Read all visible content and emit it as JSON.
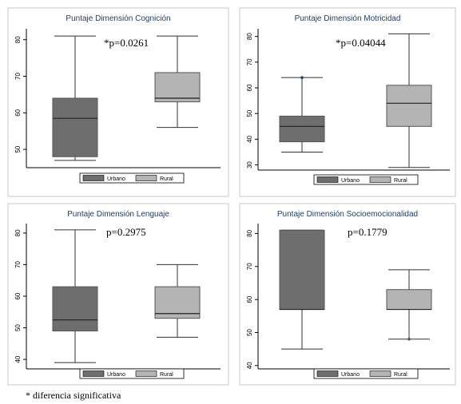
{
  "footnote": "* diferencia significativa",
  "colors": {
    "urbano": "#6e6e6e",
    "rural": "#b4b4b4",
    "title": "#1c3e6e",
    "frame": "#c8c8c8"
  },
  "chart_data": [
    {
      "type": "boxplot",
      "title": "Puntaje Dimensión Cognición",
      "annotation": "*p=0.0261",
      "yticks": [
        50,
        60,
        70,
        80
      ],
      "ylim": [
        45,
        83
      ],
      "legend": [
        "Urbano",
        "Rural"
      ],
      "series": [
        {
          "name": "Urbano",
          "min": 47,
          "q1": 48,
          "median": 58.5,
          "q3": 64,
          "max": 81,
          "outliers": []
        },
        {
          "name": "Rural",
          "min": 56,
          "q1": 63,
          "median": 64,
          "q3": 71,
          "max": 81,
          "outliers": []
        }
      ]
    },
    {
      "type": "boxplot",
      "title": "Puntaje Dimensión Motricidad",
      "annotation": "*p=0.04044",
      "yticks": [
        30,
        40,
        50,
        60,
        70,
        80
      ],
      "ylim": [
        28,
        83
      ],
      "legend": [
        "Urbano",
        "Rural"
      ],
      "series": [
        {
          "name": "Urbano",
          "min": 35,
          "q1": 39,
          "median": 45,
          "q3": 49,
          "max": 64,
          "outliers": [
            64
          ]
        },
        {
          "name": "Rural",
          "min": 29,
          "q1": 45,
          "median": 54,
          "q3": 61,
          "max": 81,
          "outliers": []
        }
      ]
    },
    {
      "type": "boxplot",
      "title": "Puntaje Dimensión Lenguaje",
      "annotation": "p=0.2975",
      "yticks": [
        40,
        50,
        60,
        70,
        80
      ],
      "ylim": [
        37,
        83
      ],
      "legend": [
        "Urbano",
        "Rural"
      ],
      "series": [
        {
          "name": "Urbano",
          "min": 39,
          "q1": 49,
          "median": 52.5,
          "q3": 63,
          "max": 81,
          "outliers": []
        },
        {
          "name": "Rural",
          "min": 47,
          "q1": 53,
          "median": 54.5,
          "q3": 63,
          "max": 70,
          "outliers": []
        }
      ]
    },
    {
      "type": "boxplot",
      "title": "Puntaje Dimensión Socioemocionalidad",
      "annotation": "p=0.1779",
      "yticks": [
        40,
        50,
        60,
        70,
        80
      ],
      "ylim": [
        39,
        83
      ],
      "legend": [
        "Urbano",
        "Rural"
      ],
      "series": [
        {
          "name": "Urbano",
          "min": 45,
          "q1": 57,
          "median": 57,
          "q3": 81,
          "max": 81,
          "outliers": []
        },
        {
          "name": "Rural",
          "min": 48,
          "q1": 57,
          "median": 57,
          "q3": 63,
          "max": 69,
          "outliers": [
            48
          ]
        }
      ]
    }
  ]
}
